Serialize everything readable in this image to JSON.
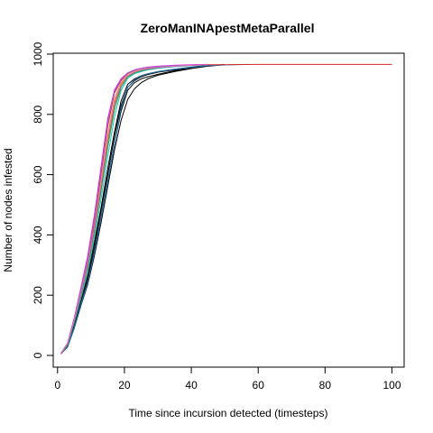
{
  "chart_data": {
    "type": "line",
    "title": "ZeroManINApestMetaParallel",
    "xlabel": "Time since incursion detected (timesteps)",
    "ylabel": "Number of nodes infested",
    "xlim": [
      0,
      100
    ],
    "ylim": [
      0,
      1000
    ],
    "xticks": [
      0,
      20,
      40,
      60,
      80,
      100
    ],
    "yticks": [
      0,
      200,
      400,
      600,
      800,
      1000
    ],
    "grid": false,
    "legend": "none",
    "series": [
      {
        "color": "#000000",
        "x": [
          1,
          3,
          5,
          7,
          9,
          11,
          13,
          15,
          17,
          19,
          21,
          23,
          25,
          27,
          30,
          35,
          40,
          45,
          50
        ],
        "y": [
          5,
          30,
          95,
          170,
          245,
          345,
          460,
          580,
          700,
          810,
          880,
          905,
          918,
          925,
          933,
          945,
          955,
          962,
          965
        ]
      },
      {
        "color": "#000000",
        "x": [
          1,
          3,
          5,
          7,
          9,
          11,
          13,
          15,
          17,
          19,
          21,
          23,
          25,
          27,
          30,
          35,
          40,
          45,
          50
        ],
        "y": [
          6,
          35,
          105,
          185,
          265,
          375,
          490,
          620,
          740,
          845,
          900,
          918,
          928,
          935,
          942,
          950,
          957,
          963,
          965
        ]
      },
      {
        "color": "#000000",
        "x": [
          1,
          3,
          5,
          7,
          9,
          11,
          13,
          15,
          17,
          19,
          21,
          23,
          25,
          27,
          30,
          35,
          40,
          45,
          50
        ],
        "y": [
          5,
          28,
          90,
          165,
          235,
          330,
          440,
          560,
          680,
          780,
          850,
          885,
          905,
          918,
          930,
          942,
          952,
          960,
          965
        ]
      },
      {
        "color": "#000000",
        "x": [
          1,
          3,
          5,
          7,
          9,
          11,
          13,
          15,
          17,
          19,
          21,
          23,
          25,
          27,
          30,
          35,
          40,
          45,
          50
        ],
        "y": [
          6,
          32,
          100,
          180,
          255,
          360,
          480,
          600,
          725,
          830,
          890,
          912,
          925,
          932,
          940,
          948,
          956,
          962,
          965
        ]
      },
      {
        "color": "#1f77b4",
        "x": [
          1,
          3,
          5,
          7,
          9,
          11,
          13,
          15,
          17,
          19,
          21,
          23,
          25,
          27,
          30,
          35,
          40,
          45,
          50,
          57
        ],
        "y": [
          5,
          30,
          92,
          168,
          240,
          340,
          455,
          575,
          700,
          820,
          890,
          915,
          928,
          935,
          942,
          950,
          956,
          962,
          964,
          966
        ]
      },
      {
        "color": "#17becf",
        "x": [
          1,
          3,
          5,
          7,
          9,
          11,
          13,
          15,
          17,
          19,
          21,
          23,
          25,
          27,
          30,
          35,
          40,
          45
        ],
        "y": [
          6,
          36,
          108,
          190,
          275,
          390,
          520,
          660,
          790,
          880,
          920,
          935,
          942,
          948,
          953,
          958,
          962,
          965
        ]
      },
      {
        "color": "#2ca02c",
        "x": [
          1,
          3,
          5,
          7,
          9,
          11,
          13,
          15,
          17,
          19,
          21,
          23,
          25,
          27,
          30,
          35,
          40,
          45
        ],
        "y": [
          6,
          38,
          112,
          200,
          290,
          410,
          545,
          690,
          815,
          890,
          925,
          938,
          945,
          950,
          955,
          960,
          963,
          965
        ]
      },
      {
        "color": "#ff7f0e",
        "x": [
          1,
          3,
          5,
          7,
          9,
          11,
          13,
          15,
          17,
          19,
          21,
          23,
          25,
          27,
          30,
          35,
          40,
          45
        ],
        "y": [
          6,
          40,
          118,
          210,
          305,
          430,
          575,
          730,
          850,
          905,
          930,
          942,
          948,
          953,
          957,
          961,
          964,
          966
        ]
      },
      {
        "color": "#d62728",
        "x": [
          1,
          3,
          5,
          7,
          9,
          11,
          13,
          15,
          17,
          19,
          21,
          23,
          25,
          27,
          30,
          35,
          40,
          45,
          50,
          60,
          70,
          80,
          90,
          100
        ],
        "y": [
          6,
          40,
          120,
          215,
          315,
          445,
          600,
          760,
          870,
          912,
          935,
          946,
          952,
          956,
          959,
          962,
          964,
          965,
          965,
          966,
          966,
          966,
          966,
          966
        ]
      },
      {
        "color": "#ff00ff",
        "x": [
          1,
          3,
          5,
          7,
          9,
          11,
          13,
          15,
          17,
          19,
          21,
          23,
          25,
          27,
          30,
          35,
          40,
          45
        ],
        "y": [
          6,
          42,
          125,
          225,
          330,
          465,
          625,
          785,
          880,
          918,
          938,
          948,
          953,
          957,
          960,
          963,
          965,
          966
        ]
      },
      {
        "color": "#9467bd",
        "x": [
          1,
          3,
          5,
          7,
          9,
          11,
          13,
          15,
          17,
          19,
          21,
          23,
          25,
          27,
          30,
          35,
          40,
          45
        ],
        "y": [
          6,
          41,
          122,
          220,
          322,
          455,
          612,
          775,
          875,
          915,
          937,
          947,
          952,
          956,
          959,
          962,
          964,
          965
        ]
      },
      {
        "color": "#8c564b",
        "x": [
          1,
          3,
          5,
          7,
          9,
          11,
          13,
          15,
          17,
          19,
          21,
          23,
          25,
          27,
          30,
          35,
          40,
          45
        ],
        "y": [
          6,
          39,
          115,
          205,
          300,
          420,
          560,
          710,
          830,
          898,
          928,
          940,
          947,
          951,
          956,
          960,
          963,
          965
        ]
      },
      {
        "color": "#e377c2",
        "x": [
          1,
          3,
          5,
          7,
          9,
          11,
          13,
          15,
          17,
          19,
          21,
          23,
          25,
          27,
          30,
          35,
          40,
          45
        ],
        "y": [
          6,
          40,
          117,
          208,
          303,
          425,
          568,
          720,
          840,
          900,
          929,
          941,
          948,
          952,
          956,
          960,
          963,
          965
        ]
      }
    ]
  }
}
